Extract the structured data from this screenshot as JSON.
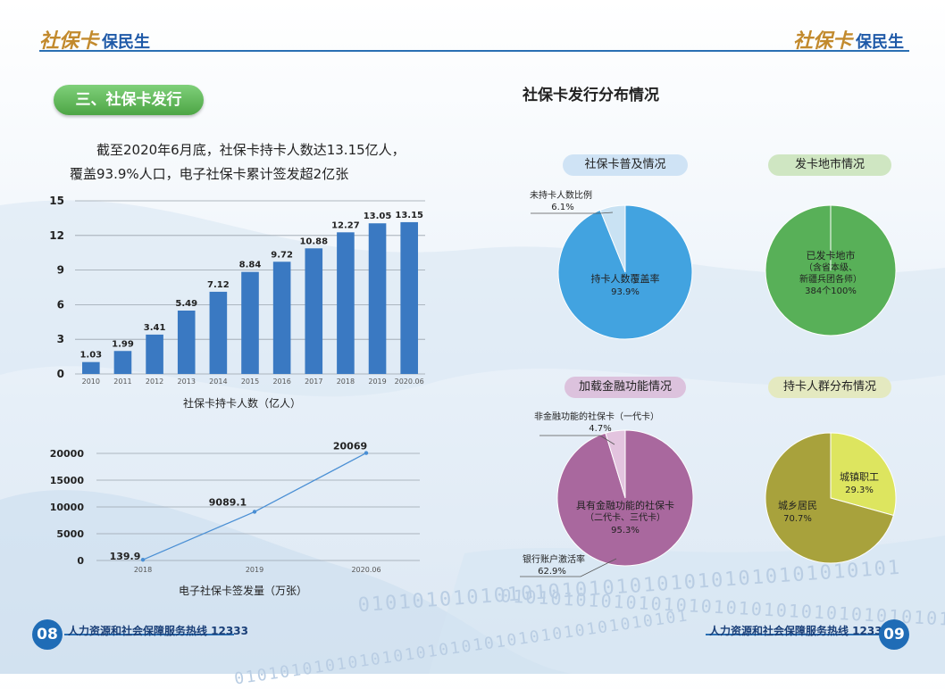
{
  "header": {
    "logo_left": {
      "brand": "社保卡",
      "slogan": "保民生"
    },
    "logo_right": {
      "brand": "社保卡",
      "slogan": "保民生"
    }
  },
  "left": {
    "section_title": "三、社保卡发行",
    "intro_line1": "截至2020年6月底，社保卡持卡人数达13.15亿人，",
    "intro_line2": "覆盖93.9%人口，电子社保卡累计签发超2亿张",
    "bar_caption": "社保卡持卡人数（亿人）",
    "line_caption": "电子社保卡签发量（万张）"
  },
  "right": {
    "title": "社保卡发行分布情况",
    "pill_coverage": "社保卡普及情况",
    "pill_cities": "发卡地市情况",
    "pill_finance": "加载金融功能情况",
    "pill_population": "持卡人群分布情况"
  },
  "footer": {
    "left_page": "08",
    "right_page": "09",
    "hotline_left": "人力资源和社会保障服务热线  12333",
    "hotline_right": "人力资源和社会保障服务热线  12333"
  },
  "decor": {
    "binary_text": "0101010101010101010101010101010101010101"
  },
  "chart_data": [
    {
      "type": "bar",
      "categories": [
        "2010",
        "2011",
        "2012",
        "2013",
        "2014",
        "2015",
        "2016",
        "2017",
        "2018",
        "2019",
        "2020.06"
      ],
      "values": [
        1.03,
        1.99,
        3.41,
        5.49,
        7.12,
        8.84,
        9.72,
        10.88,
        12.27,
        13.05,
        13.15
      ],
      "value_labels": [
        "1.03",
        "1.99",
        "3.41",
        "5.49",
        "7.12",
        "8.84",
        "9.72",
        "10.88",
        "12.27",
        "13.05",
        "13.15"
      ],
      "title": "",
      "xlabel": "社保卡持卡人数（亿人）",
      "ylabel": "",
      "ylim": [
        0,
        15
      ],
      "yticks": [
        "0",
        "3",
        "6",
        "9",
        "12",
        "15"
      ],
      "grid": true,
      "color": "#3a79c2"
    },
    {
      "type": "line",
      "x": [
        "2018",
        "2019",
        "2020.06"
      ],
      "values": [
        139.9,
        9089.1,
        20069
      ],
      "value_labels": [
        "139.9",
        "9089.1",
        "20069"
      ],
      "title": "",
      "xlabel": "电子社保卡签发量（万张）",
      "ylabel": "",
      "ylim": [
        0,
        20000
      ],
      "yticks": [
        "0",
        "5000",
        "10000",
        "15000",
        "20000"
      ],
      "grid": true,
      "color": "#4a8fd4"
    },
    {
      "type": "pie",
      "title": "社保卡普及情况",
      "slices": [
        {
          "label": "持卡人数覆盖率",
          "pct_label": "93.9%",
          "value": 93.9,
          "color": "#42a3e0"
        },
        {
          "label": "未持卡人数比例",
          "pct_label": "6.1%",
          "value": 6.1,
          "color": "#c9e2f3"
        }
      ]
    },
    {
      "type": "pie",
      "title": "发卡地市情况",
      "slices": [
        {
          "label": "已发卡地市",
          "sub1": "（含省本级、",
          "sub2": "新疆兵团各师）",
          "pct_label": "384个100%",
          "value": 100,
          "color": "#58b058"
        }
      ]
    },
    {
      "type": "pie",
      "title": "加载金融功能情况",
      "slices": [
        {
          "label": "具有金融功能的社保卡",
          "sub1": "（二代卡、三代卡）",
          "pct_label": "95.3%",
          "value": 95.3,
          "color": "#a9689e"
        },
        {
          "label": "非金融功能的社保卡（一代卡）",
          "pct_label": "4.7%",
          "value": 4.7,
          "color": "#e3c4df"
        }
      ],
      "annotation": {
        "label": "银行账户激活率",
        "pct_label": "62.9%"
      }
    },
    {
      "type": "pie",
      "title": "持卡人群分布情况",
      "slices": [
        {
          "label": "城镇职工",
          "pct_label": "29.3%",
          "value": 29.3,
          "color": "#dde55f"
        },
        {
          "label": "城乡居民",
          "pct_label": "70.7%",
          "value": 70.7,
          "color": "#a8a23c"
        }
      ]
    }
  ]
}
